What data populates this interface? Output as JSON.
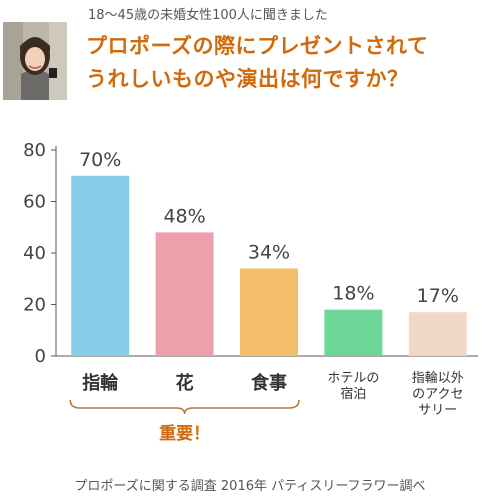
{
  "header": {
    "survey_note": "18〜45歳の未婚女性100人に聞きました",
    "question_line1": "プロポーズの際にプレゼントされて",
    "question_line2": "うれしいものや演出は何ですか？"
  },
  "photo": {
    "icon": "woman-portrait-photo"
  },
  "chart_data": {
    "type": "bar",
    "title": "",
    "xlabel": "",
    "ylabel": "",
    "ylim": [
      0,
      80
    ],
    "yticks": [
      0,
      20,
      40,
      60,
      80
    ],
    "grid": false,
    "categories": [
      [
        "指輪"
      ],
      [
        "花"
      ],
      [
        "食事"
      ],
      [
        "ホテルの",
        "宿泊"
      ],
      [
        "指輪以外",
        "のアクセ",
        "サリー"
      ]
    ],
    "values": [
      70,
      48,
      34,
      18,
      17
    ],
    "data_labels": [
      "70%",
      "48%",
      "34%",
      "18%",
      "17%"
    ],
    "colors": [
      "#88cde8",
      "#ee9fac",
      "#f2be6c",
      "#6ed696",
      "#f1d7c6"
    ],
    "bracket_label": "重要！",
    "bracket_color": "#b07a3a",
    "bracket_label_color": "#d06a0c"
  },
  "footer": {
    "source": "プロポーズに関する調査 2016年 パティスリーフラワー調べ"
  }
}
